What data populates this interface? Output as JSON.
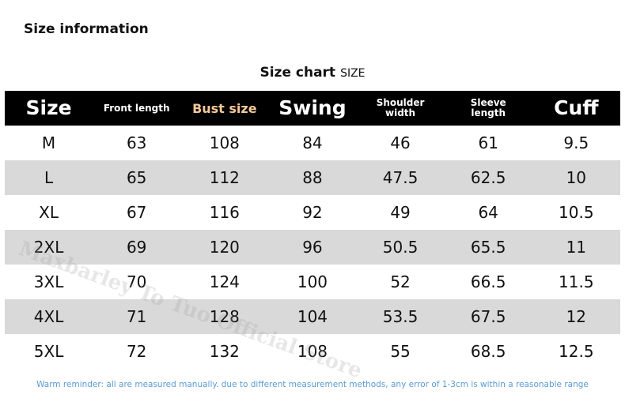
{
  "header": {
    "title": "Size information",
    "subtitle": "Size chart",
    "subtitle_small": "SIZE"
  },
  "table": {
    "columns": [
      "Size",
      "Front length",
      "Bust size",
      "Swing",
      "Shoulder width",
      "Sleeve length",
      "Cuff"
    ],
    "rows": [
      [
        "M",
        63,
        108,
        84,
        46,
        61,
        9.5
      ],
      [
        "L",
        65,
        112,
        88,
        47.5,
        62.5,
        10
      ],
      [
        "XL",
        67,
        116,
        92,
        49,
        64,
        10.5
      ],
      [
        "2XL",
        69,
        120,
        96,
        50.5,
        65.5,
        11
      ],
      [
        "3XL",
        70,
        124,
        100,
        52,
        66.5,
        11.5
      ],
      [
        "4XL",
        71,
        128,
        104,
        53.5,
        67.5,
        12
      ],
      [
        "5XL",
        72,
        132,
        108,
        55,
        68.5,
        12.5
      ]
    ]
  },
  "watermark": "Maxbarley To Tuo Official Store",
  "footer": {
    "note": "Warm reminder: all are measured manually. due to different measurement methods, any error of 1-3cm is within a reasonable range"
  }
}
